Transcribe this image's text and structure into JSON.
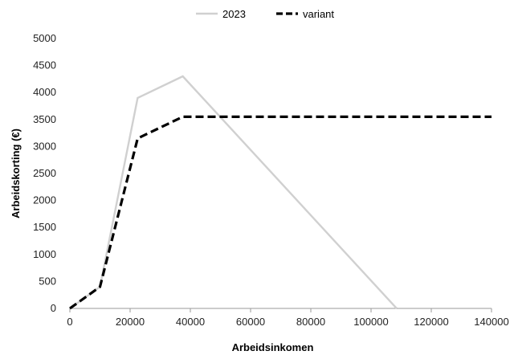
{
  "chart_data": {
    "type": "line",
    "title": "",
    "xlabel": "Arbeidsinkomen",
    "ylabel": "Arbeidskorting (€)",
    "xlim": [
      0,
      140000
    ],
    "ylim": [
      0,
      5000
    ],
    "x_ticks": [
      0,
      20000,
      40000,
      60000,
      80000,
      100000,
      120000,
      140000
    ],
    "y_ticks": [
      0,
      500,
      1000,
      1500,
      2000,
      2500,
      3000,
      3500,
      4000,
      4500,
      5000
    ],
    "grid": false,
    "legend_position": "top",
    "series": [
      {
        "name": "2023",
        "color": "#d0d0d0",
        "style": "solid",
        "points": [
          [
            0,
            0
          ],
          [
            10000,
            400
          ],
          [
            22500,
            3900
          ],
          [
            37500,
            4300
          ],
          [
            108500,
            0
          ]
        ]
      },
      {
        "name": "variant",
        "color": "#000000",
        "style": "dashed",
        "points": [
          [
            0,
            0
          ],
          [
            10000,
            400
          ],
          [
            22500,
            3150
          ],
          [
            37500,
            3550
          ],
          [
            140000,
            3550
          ]
        ]
      }
    ]
  }
}
